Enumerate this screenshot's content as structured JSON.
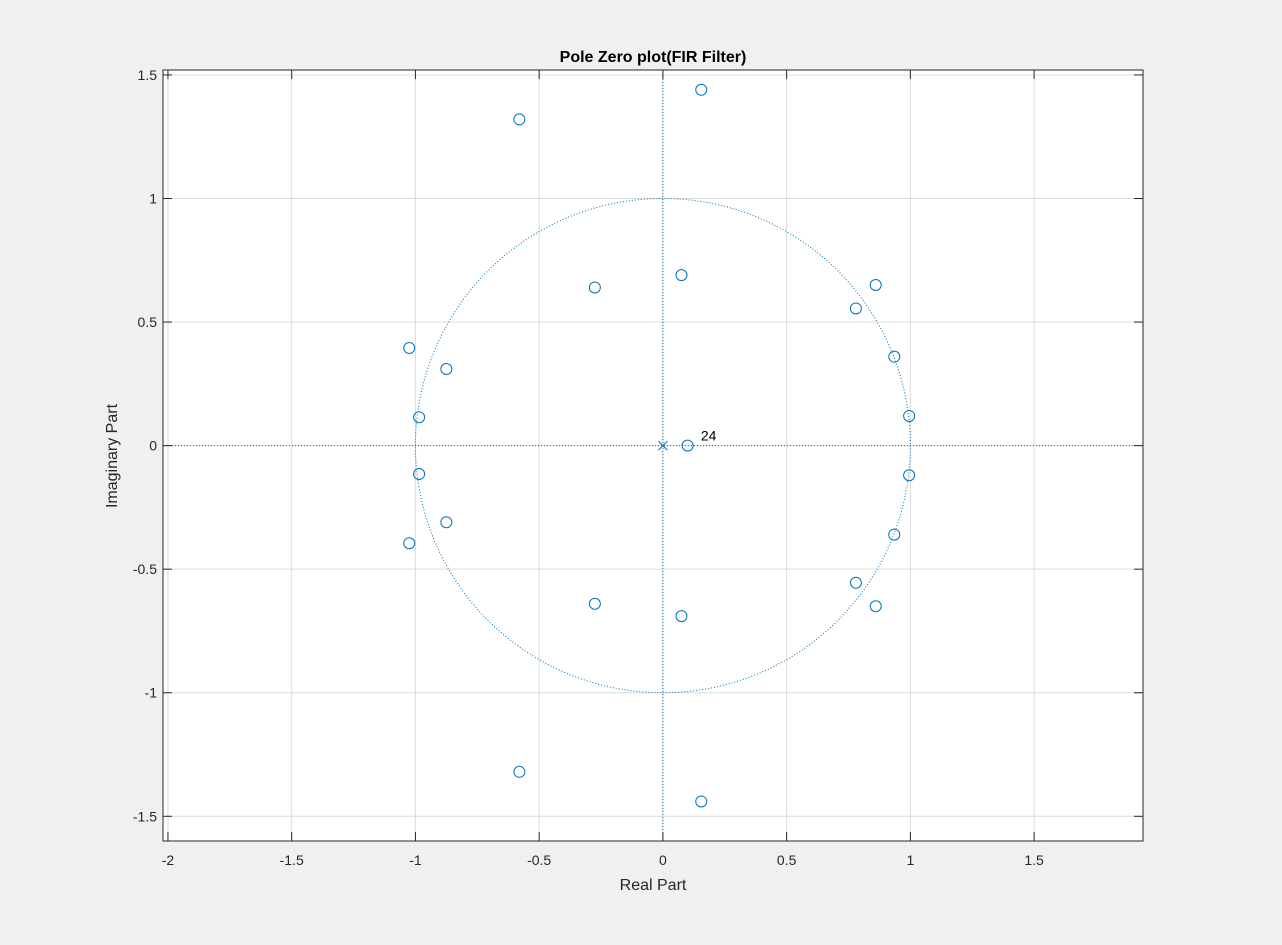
{
  "chart_data": {
    "type": "scatter",
    "title": "Pole Zero plot(FIR Filter)",
    "xlabel": "Real Part",
    "ylabel": "Imaginary Part",
    "xlim": [
      -2.02,
      1.94
    ],
    "ylim": [
      -1.6,
      1.52
    ],
    "xticks": [
      -2,
      -1.5,
      -1,
      -0.5,
      0,
      0.5,
      1,
      1.5
    ],
    "yticks": [
      -1.5,
      -1,
      -0.5,
      0,
      0.5,
      1,
      1.5
    ],
    "xtick_labels": [
      "-2",
      "-1.5",
      "-1",
      "-0.5",
      "0",
      "0.5",
      "1",
      "1.5"
    ],
    "ytick_labels": [
      "-1.5",
      "-1",
      "-0.5",
      "0",
      "0.5",
      "1",
      "1.5"
    ],
    "grid": true,
    "unit_circle": true,
    "colors": {
      "marker": "#0072bd",
      "reference": "#0072bd",
      "grid": "#dcdcdc"
    },
    "zeros": [
      {
        "x": 0.155,
        "y": 1.44
      },
      {
        "x": 0.155,
        "y": -1.44
      },
      {
        "x": -0.58,
        "y": 1.32
      },
      {
        "x": -0.58,
        "y": -1.32
      },
      {
        "x": 0.075,
        "y": 0.69
      },
      {
        "x": 0.075,
        "y": -0.69
      },
      {
        "x": -0.275,
        "y": 0.64
      },
      {
        "x": -0.275,
        "y": -0.64
      },
      {
        "x": 0.86,
        "y": 0.65
      },
      {
        "x": 0.86,
        "y": -0.65
      },
      {
        "x": 0.78,
        "y": 0.555
      },
      {
        "x": 0.78,
        "y": -0.555
      },
      {
        "x": 0.935,
        "y": 0.36
      },
      {
        "x": 0.935,
        "y": -0.36
      },
      {
        "x": 0.995,
        "y": 0.12
      },
      {
        "x": 0.995,
        "y": -0.12
      },
      {
        "x": -1.025,
        "y": 0.395
      },
      {
        "x": -1.025,
        "y": -0.395
      },
      {
        "x": -0.875,
        "y": 0.31
      },
      {
        "x": -0.875,
        "y": -0.31
      },
      {
        "x": -0.985,
        "y": 0.115
      },
      {
        "x": -0.985,
        "y": -0.115
      },
      {
        "x": 0.1,
        "y": 0.0
      }
    ],
    "poles": [
      {
        "x": 0.0,
        "y": 0.0,
        "multiplicity_label": "24"
      }
    ]
  }
}
